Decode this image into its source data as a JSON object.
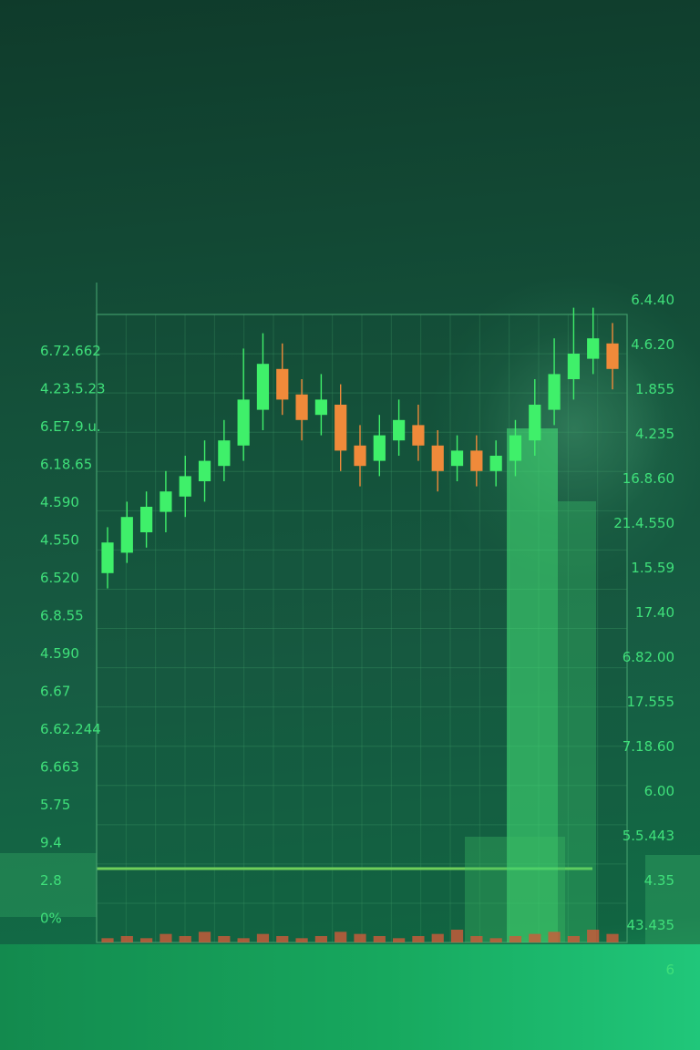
{
  "chart_data": {
    "type": "candlestick",
    "title": "",
    "xlabel": "",
    "ylabel": "",
    "grid": true,
    "colors": {
      "up": "#3ff06a",
      "down": "#f08a3a",
      "grid": "#3f9a68",
      "label": "#3fe07a"
    },
    "ylim": [
      0,
      100
    ],
    "left_ticks": [
      "6.72.662",
      "4.23.5.23",
      "6.E7.9.u.",
      "6.18.65",
      "4.590",
      "4.550",
      "6.520",
      "6.8.55",
      "4.590",
      "6.67",
      "6.62.244",
      "6.663",
      "5.75",
      "9.4",
      "2.8",
      "0%"
    ],
    "right_ticks": [
      "6.4.40",
      "4.6.20",
      "1.855",
      "4.235",
      "16.8.60",
      "21.4.550",
      "1.5.59",
      "17.40",
      "6.82.00",
      "17.555",
      "7.18.60",
      "6.00",
      "5.5.443",
      "4.35",
      "43.435",
      "6"
    ],
    "candles": [
      {
        "o": 52,
        "c": 58,
        "h": 61,
        "l": 49
      },
      {
        "o": 56,
        "c": 63,
        "h": 66,
        "l": 54
      },
      {
        "o": 60,
        "c": 65,
        "h": 68,
        "l": 57
      },
      {
        "o": 64,
        "c": 68,
        "h": 72,
        "l": 60
      },
      {
        "o": 67,
        "c": 71,
        "h": 75,
        "l": 63
      },
      {
        "o": 70,
        "c": 74,
        "h": 78,
        "l": 66
      },
      {
        "o": 73,
        "c": 78,
        "h": 82,
        "l": 70
      },
      {
        "o": 77,
        "c": 86,
        "h": 96,
        "l": 74
      },
      {
        "o": 84,
        "c": 93,
        "h": 99,
        "l": 80
      },
      {
        "o": 92,
        "c": 86,
        "h": 97,
        "l": 83
      },
      {
        "o": 87,
        "c": 82,
        "h": 90,
        "l": 78
      },
      {
        "o": 83,
        "c": 86,
        "h": 91,
        "l": 79
      },
      {
        "o": 85,
        "c": 76,
        "h": 89,
        "l": 72
      },
      {
        "o": 77,
        "c": 73,
        "h": 81,
        "l": 69
      },
      {
        "o": 74,
        "c": 79,
        "h": 83,
        "l": 71
      },
      {
        "o": 78,
        "c": 82,
        "h": 86,
        "l": 75
      },
      {
        "o": 81,
        "c": 77,
        "h": 85,
        "l": 74
      },
      {
        "o": 77,
        "c": 72,
        "h": 80,
        "l": 68
      },
      {
        "o": 73,
        "c": 76,
        "h": 79,
        "l": 70
      },
      {
        "o": 76,
        "c": 72,
        "h": 79,
        "l": 69
      },
      {
        "o": 72,
        "c": 75,
        "h": 78,
        "l": 69
      },
      {
        "o": 74,
        "c": 79,
        "h": 82,
        "l": 71
      },
      {
        "o": 78,
        "c": 85,
        "h": 90,
        "l": 75
      },
      {
        "o": 84,
        "c": 91,
        "h": 98,
        "l": 81
      },
      {
        "o": 90,
        "c": 95,
        "h": 104,
        "l": 86
      },
      {
        "o": 94,
        "c": 98,
        "h": 104,
        "l": 91
      },
      {
        "o": 97,
        "c": 92,
        "h": 101,
        "l": 88
      }
    ],
    "volume": [
      2,
      3,
      2,
      4,
      3,
      5,
      3,
      2,
      4,
      3,
      2,
      3,
      5,
      4,
      3,
      2,
      3,
      4,
      6,
      3,
      2,
      3,
      4,
      5,
      3,
      6,
      4
    ]
  }
}
